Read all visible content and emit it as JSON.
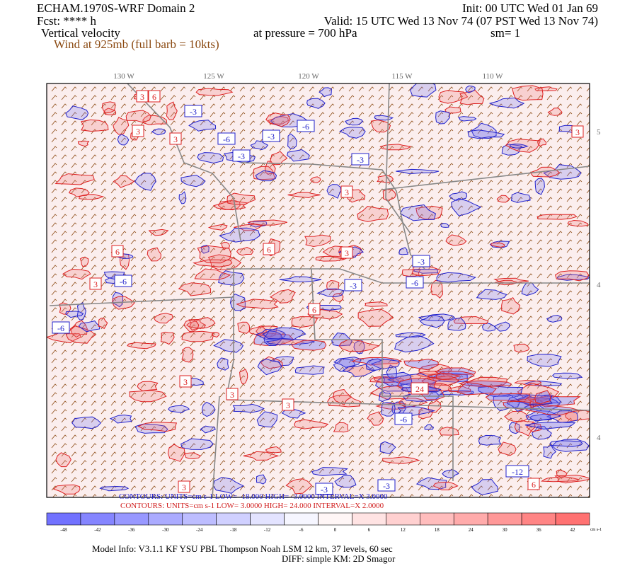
{
  "header": {
    "title": "ECHAM.1970S-WRF Domain 2",
    "init": "Init: 00 UTC Wed 01 Jan 69",
    "forecast": "Fcst: **** h",
    "valid": "Valid: 15 UTC Wed 13 Nov 74 (07 PST Wed 13 Nov 74)",
    "field": "Vertical velocity",
    "pressure": "at pressure =  700 hPa",
    "smoothing": "sm= 1",
    "wind": "Wind at 925mb (full barb = 10kts)"
  },
  "map": {
    "longitude_labels": [
      "130 W",
      "125 W",
      "120 W",
      "115 W",
      "110 W"
    ],
    "latitude_labels": [
      "5",
      "4",
      "4"
    ],
    "contour_labels": [
      "3",
      "6",
      "-3",
      "-6",
      "3",
      "-3",
      "-6",
      "3",
      "3",
      "-3",
      "6",
      "-3",
      "3",
      "-6",
      "-3",
      "3",
      "3",
      "6",
      "-6",
      "24",
      "-3",
      "6",
      "3",
      "-6",
      "3",
      "-3",
      "-12",
      "6",
      "3",
      "-3",
      "3",
      "-6"
    ]
  },
  "contour_info": {
    "negative": "CONTOURS:  UNITS=cm s-1   LOW=  -18.000     HIGH=  -3.0000     INTERVAL=X  3.0000",
    "positive": "CONTOURS:  UNITS=cm s-1   LOW=  3.0000     HIGH=  24.000     INTERVAL=X  2.0000"
  },
  "color_bar": {
    "labels": [
      -48,
      -42,
      -36,
      -30,
      -24,
      -18,
      -12,
      -6,
      0,
      6,
      12,
      18,
      24,
      30,
      36,
      42
    ],
    "units": "cm s-1"
  },
  "footer": {
    "model_info": "Model Info: V3.1.1     KF      YSU PBL    Thompson      Noah LSM    12 km,     37 levels,     60 sec",
    "diff": "DIFF: simple KM: 2D Smagor"
  }
}
